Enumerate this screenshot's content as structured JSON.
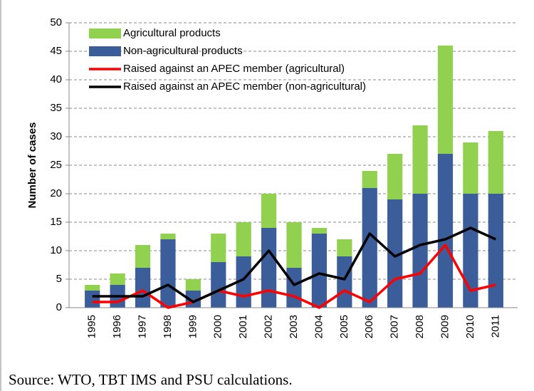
{
  "chart_data": {
    "type": "bar",
    "stacked": true,
    "ylabel": "Number of cases",
    "categories": [
      "1995",
      "1996",
      "1997",
      "1998",
      "1999",
      "2000",
      "2001",
      "2002",
      "2003",
      "2004",
      "2005",
      "2006",
      "2007",
      "2008",
      "2009",
      "2010",
      "2011"
    ],
    "series": [
      {
        "name": "Agricultural products",
        "color": "#92d050",
        "type": "bar",
        "values": [
          1,
          2,
          4,
          1,
          2,
          5,
          6,
          6,
          8,
          1,
          3,
          3,
          8,
          12,
          19,
          9,
          11
        ]
      },
      {
        "name": "Non-agricultural products",
        "color": "#3b5e9b",
        "type": "bar",
        "values": [
          3,
          4,
          7,
          12,
          3,
          8,
          9,
          14,
          7,
          13,
          9,
          21,
          19,
          20,
          27,
          20,
          20
        ]
      },
      {
        "name": "Raised against an APEC member (agricultural)",
        "color": "#ff0000",
        "type": "line",
        "values": [
          1,
          1,
          3,
          0,
          1,
          3,
          2,
          3,
          2,
          0,
          3,
          1,
          5,
          6,
          11,
          3,
          4
        ]
      },
      {
        "name": "Raised against an APEC member (non-agricultural)",
        "color": "#000000",
        "type": "line",
        "values": [
          2,
          2,
          2,
          4,
          1,
          3,
          5,
          10,
          4,
          6,
          5,
          13,
          9,
          11,
          12,
          14,
          12
        ]
      }
    ],
    "ylim": [
      0,
      50
    ],
    "yticks": [
      0,
      5,
      10,
      15,
      20,
      25,
      30,
      35,
      40,
      45,
      50
    ],
    "grid": true,
    "legend": "upper left"
  },
  "source": "Source: WTO, TBT IMS and PSU calculations."
}
